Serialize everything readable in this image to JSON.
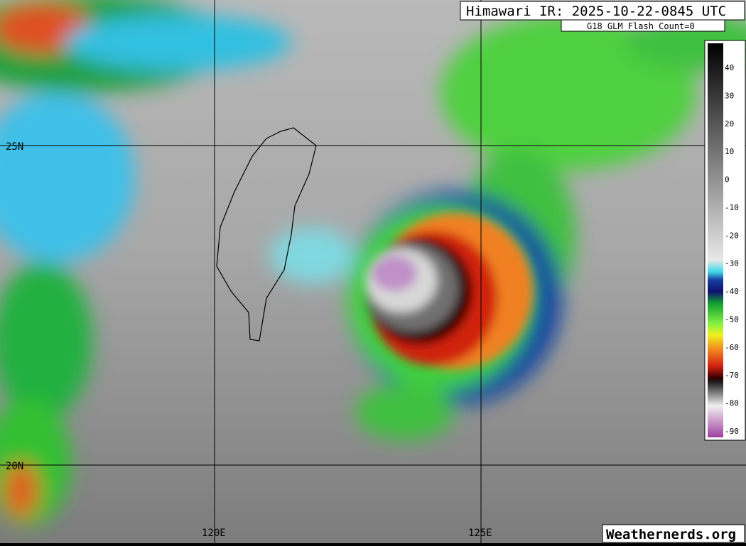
{
  "header": {
    "title": "Himawari IR: 2025-10-22-0845 UTC",
    "subtitle": "G18 GLM Flash Count=0"
  },
  "map": {
    "lat_labels": [
      "25N",
      "20N"
    ],
    "lon_labels": [
      "120E",
      "125E"
    ]
  },
  "colorbar": {
    "ticks": [
      "40",
      "30",
      "20",
      "10",
      "0",
      "-10",
      "-20",
      "-30",
      "-40",
      "-50",
      "-60",
      "-70",
      "-80",
      "-90"
    ]
  },
  "footer": {
    "credit": "Weathernerds.org"
  }
}
